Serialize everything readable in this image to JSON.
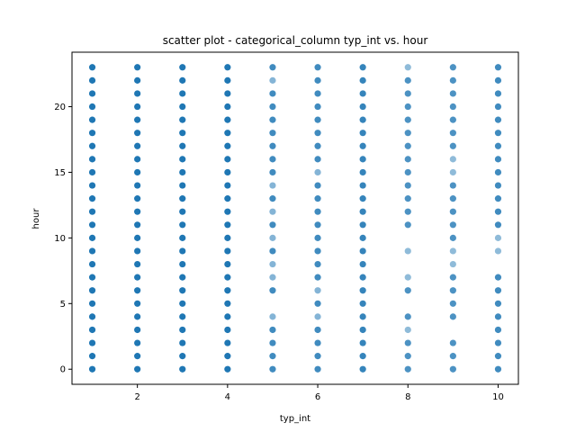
{
  "chart_data": {
    "type": "scatter",
    "title": "scatter plot - categorical_column typ_int vs. hour",
    "xlabel": "typ_int",
    "ylabel": "hour",
    "xlim": [
      0.55,
      10.45
    ],
    "ylim": [
      -1.15,
      24.15
    ],
    "xticks": [
      2,
      4,
      6,
      8,
      10
    ],
    "yticks": [
      0,
      5,
      10,
      15,
      20
    ],
    "grid": false,
    "marker_color": "#1f77b4",
    "series": [
      {
        "points": [
          {
            "x": 1,
            "hours": [
              0,
              1,
              2,
              3,
              4,
              5,
              6,
              7,
              8,
              9,
              10,
              11,
              12,
              13,
              14,
              15,
              16,
              17,
              18,
              19,
              20,
              21,
              22,
              23
            ],
            "opacity": 1.0
          },
          {
            "x": 2,
            "hours": [
              0,
              1,
              2,
              3,
              4,
              5,
              6,
              7,
              8,
              9,
              10,
              11,
              12,
              13,
              14,
              15,
              16,
              17,
              18,
              19,
              20,
              21,
              22,
              23
            ],
            "opacity": 1.0
          },
          {
            "x": 3,
            "hours": [
              0,
              1,
              2,
              3,
              4,
              5,
              6,
              7,
              8,
              9,
              10,
              11,
              12,
              13,
              14,
              15,
              16,
              17,
              18,
              19,
              20,
              21,
              22,
              23
            ],
            "opacity": 1.0
          },
          {
            "x": 4,
            "hours": [
              0,
              1,
              2,
              3,
              4,
              5,
              6,
              7,
              8,
              9,
              10,
              11,
              12,
              13,
              14,
              15,
              16,
              17,
              18,
              19,
              20,
              21,
              22,
              23
            ],
            "opacity": 1.0
          },
          {
            "x": 5,
            "hours": [
              0,
              1,
              2,
              3,
              6,
              9,
              11,
              13,
              15,
              16,
              17,
              18,
              19,
              20,
              21,
              23
            ],
            "opacity": 0.85
          },
          {
            "x": 5,
            "hours": [
              4,
              7,
              8,
              10,
              12,
              14,
              22
            ],
            "opacity": 0.55
          },
          {
            "x": 6,
            "hours": [
              0,
              1,
              2,
              3,
              5,
              7,
              8,
              9,
              10,
              11,
              12,
              13,
              14,
              16,
              17,
              18,
              19,
              20,
              21,
              22,
              23
            ],
            "opacity": 0.85
          },
          {
            "x": 6,
            "hours": [
              4,
              6,
              15
            ],
            "opacity": 0.55
          },
          {
            "x": 7,
            "hours": [
              0,
              1,
              2,
              3,
              4,
              5,
              6,
              7,
              8,
              9,
              10,
              11,
              12,
              13,
              14,
              15,
              16,
              17,
              18,
              19,
              20,
              21,
              22,
              23
            ],
            "opacity": 0.9
          },
          {
            "x": 8,
            "hours": [
              0,
              1,
              2,
              4,
              6,
              11,
              12,
              13,
              14,
              15,
              16,
              17,
              18,
              19,
              20,
              21,
              22
            ],
            "opacity": 0.8
          },
          {
            "x": 8,
            "hours": [
              3,
              7,
              9,
              23
            ],
            "opacity": 0.5
          },
          {
            "x": 9,
            "hours": [
              0,
              1,
              2,
              4,
              5,
              6,
              7,
              10,
              11,
              12,
              13,
              14,
              17,
              18,
              19,
              20,
              21,
              22,
              23
            ],
            "opacity": 0.8
          },
          {
            "x": 9,
            "hours": [
              8,
              9,
              15,
              16
            ],
            "opacity": 0.5
          },
          {
            "x": 10,
            "hours": [
              0,
              1,
              2,
              3,
              4,
              5,
              6,
              7,
              11,
              12,
              13,
              14,
              15,
              16,
              17,
              18,
              19,
              20,
              21,
              22,
              23
            ],
            "opacity": 0.85
          },
          {
            "x": 10,
            "hours": [
              9,
              10
            ],
            "opacity": 0.5
          }
        ]
      }
    ]
  }
}
